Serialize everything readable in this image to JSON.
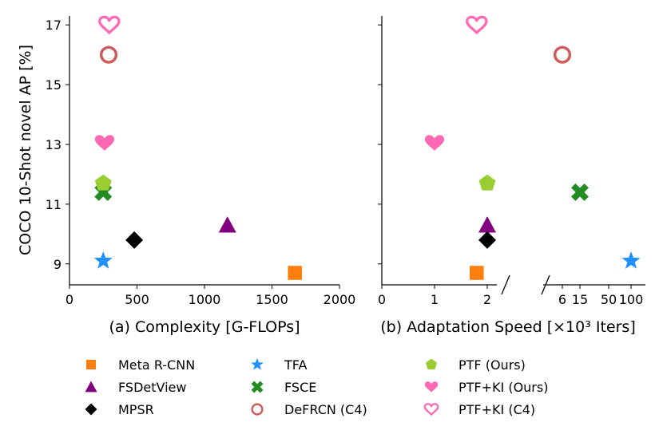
{
  "methods": [
    {
      "key": "meta_rcnn",
      "name": "Meta R-CNN",
      "marker": "square",
      "color": "#ff7f0e"
    },
    {
      "key": "fsdetview",
      "name": "FSDetView",
      "marker": "triangle",
      "color": "#800080"
    },
    {
      "key": "mpsr",
      "name": "MPSR",
      "marker": "diamond",
      "color": "#000000"
    },
    {
      "key": "tfa",
      "name": "TFA",
      "marker": "star",
      "color": "#1e90ff"
    },
    {
      "key": "fsce",
      "name": "FSCE",
      "marker": "x",
      "color": "#228b22"
    },
    {
      "key": "defrcn",
      "name": "DeFRCN (C4)",
      "marker": "circle-open",
      "color": "#cd5c5c"
    },
    {
      "key": "ptf",
      "name": "PTF (Ours)",
      "marker": "pentagon",
      "color": "#9acd32"
    },
    {
      "key": "ptf_ki",
      "name": "PTF+KI (Ours)",
      "marker": "heart",
      "color": "#ff69b4"
    },
    {
      "key": "ptf_ki_c4",
      "name": "PTF+KI (C4)",
      "marker": "heart-open",
      "color": "#ff69b4"
    }
  ],
  "chart_data": [
    {
      "type": "scatter",
      "panel": "a",
      "xlabel": "(a) Complexity [G-FLOPs]",
      "ylabel": "COCO 10-Shot novel AP [%]",
      "xlim": [
        0,
        2000
      ],
      "ylim": [
        8.3,
        17.3
      ],
      "xticks": [
        0,
        500,
        1000,
        1500,
        2000
      ],
      "xtick_labels": [
        "0",
        "500",
        "1000",
        "1500",
        "2000"
      ],
      "yticks": [
        9,
        11,
        13,
        15,
        17
      ],
      "ytick_labels": [
        "9",
        "11",
        "13",
        "15",
        "17"
      ],
      "points": [
        {
          "method": "meta_rcnn",
          "x": 1670,
          "y": 8.7
        },
        {
          "method": "fsdetview",
          "x": 1170,
          "y": 10.3
        },
        {
          "method": "mpsr",
          "x": 480,
          "y": 9.8
        },
        {
          "method": "tfa",
          "x": 250,
          "y": 9.1
        },
        {
          "method": "fsce",
          "x": 250,
          "y": 11.4
        },
        {
          "method": "defrcn",
          "x": 290,
          "y": 16.0
        },
        {
          "method": "ptf",
          "x": 250,
          "y": 11.7
        },
        {
          "method": "ptf_ki",
          "x": 260,
          "y": 13.05
        },
        {
          "method": "ptf_ki_c4",
          "x": 295,
          "y": 17.0
        }
      ]
    },
    {
      "type": "scatter",
      "panel": "b",
      "xlabel": "(b) Adaptation Speed [×10³ Iters]",
      "ylim": [
        8.3,
        17.3
      ],
      "x_axis": "broken: linear 0–2.5 then compressed 6–100",
      "xticks": [
        0,
        1,
        2,
        6,
        15,
        50,
        100
      ],
      "xtick_labels": [
        "0",
        "1",
        "2",
        "6",
        "15",
        "50",
        "100"
      ],
      "points": [
        {
          "method": "meta_rcnn",
          "x": 1.8,
          "y": 8.7
        },
        {
          "method": "fsdetview",
          "x": 2.0,
          "y": 10.3
        },
        {
          "method": "mpsr",
          "x": 2.0,
          "y": 9.8
        },
        {
          "method": "tfa",
          "x": 100,
          "y": 9.1
        },
        {
          "method": "fsce",
          "x": 15,
          "y": 11.4
        },
        {
          "method": "defrcn",
          "x": 6,
          "y": 16.0
        },
        {
          "method": "ptf",
          "x": 2.0,
          "y": 11.7
        },
        {
          "method": "ptf_ki",
          "x": 1.0,
          "y": 13.05
        },
        {
          "method": "ptf_ki_c4",
          "x": 1.8,
          "y": 17.0
        }
      ]
    }
  ]
}
